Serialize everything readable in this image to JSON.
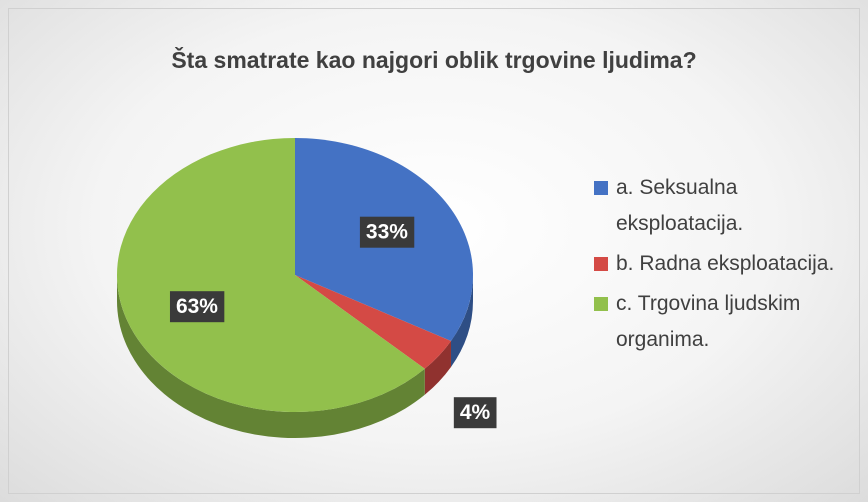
{
  "chart_data": {
    "type": "pie",
    "title": "Šta smatrate kao najgori oblik trgovine ljudima?",
    "categories": [
      "a. Seksualna eksploatacija.",
      "b. Radna eksploatacija.",
      "c. Trgovina ljudskim organima."
    ],
    "values": [
      33,
      4,
      63
    ],
    "value_labels": [
      "33%",
      "4%",
      "63%"
    ],
    "colors": [
      "#4472c4",
      "#d44a45",
      "#92c04c"
    ],
    "legend": "right"
  }
}
